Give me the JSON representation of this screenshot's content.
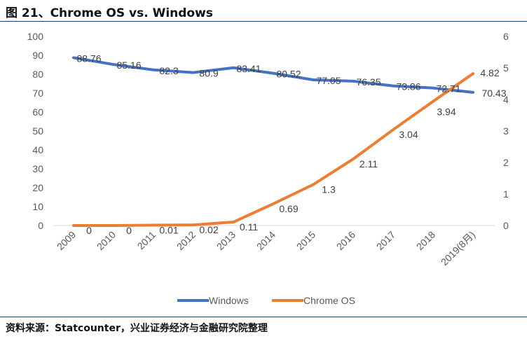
{
  "header": {
    "title": "图 21、Chrome OS vs. Windows"
  },
  "footer": {
    "source": "资料来源：Statcounter，兴业证券经济与金融研究院整理"
  },
  "colors": {
    "windows": "#4472c4",
    "chrome": "#ed7d31",
    "axis": "#d9d9d9",
    "text": "#595959"
  },
  "chart_data": {
    "type": "line",
    "title": "Chrome OS vs. Windows",
    "categories": [
      "2009",
      "2010",
      "2011",
      "2012",
      "2013",
      "2014",
      "2015",
      "2016",
      "2017",
      "2018",
      "2019(8月)"
    ],
    "series": [
      {
        "name": "Windows",
        "axis": "left",
        "values": [
          88.76,
          85.16,
          82.3,
          80.9,
          83.41,
          80.52,
          77.05,
          76.35,
          73.86,
          72.71,
          70.43
        ]
      },
      {
        "name": "Chrome OS",
        "axis": "right",
        "values": [
          0,
          0,
          0.01,
          0.02,
          0.11,
          0.69,
          1.3,
          2.11,
          3.04,
          3.94,
          4.82
        ]
      }
    ],
    "y_left": {
      "min": 0,
      "max": 100,
      "ticks": [
        "0",
        "10",
        "20",
        "30",
        "40",
        "50",
        "60",
        "70",
        "80",
        "90",
        "100"
      ]
    },
    "y_right": {
      "min": 0,
      "max": 6,
      "ticks": [
        "0",
        "1",
        "2",
        "3",
        "4",
        "5",
        "6"
      ]
    },
    "legend": [
      "Windows",
      "Chrome OS"
    ],
    "legend_position": "bottom",
    "grid": false
  }
}
